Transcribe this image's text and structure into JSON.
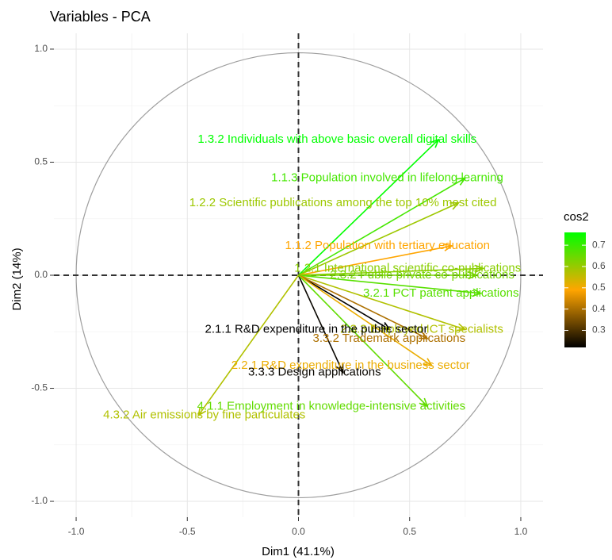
{
  "chart_data": {
    "type": "pca-correlation-circle",
    "title": "Variables - PCA",
    "xlabel": "Dim1 (41.1%)",
    "ylabel": "Dim2 (14%)",
    "xlim": [
      -1.1,
      1.1
    ],
    "ylim": [
      -1.07,
      1.07
    ],
    "xticks": [
      -1.0,
      -0.5,
      0.0,
      0.5,
      1.0
    ],
    "yticks": [
      -1.0,
      -0.5,
      0.0,
      0.5,
      1.0
    ],
    "xtick_labels": [
      "-1.0",
      "-0.5",
      "0.0",
      "0.5",
      "1.0"
    ],
    "ytick_labels": [
      "-1.0",
      "-0.5",
      "0.0",
      "0.5",
      "1.0"
    ],
    "grid": true,
    "legend": {
      "title": "cos2",
      "placement": "right",
      "range": [
        0.22,
        0.76
      ],
      "ticks": [
        0.3,
        0.4,
        0.5,
        0.6,
        0.7
      ],
      "tick_labels": [
        "0.3",
        "0.4",
        "0.5",
        "0.6",
        "0.7"
      ],
      "colors": [
        "#000000",
        "#ffa500",
        "#00ff00"
      ],
      "midpoint": 0.5
    },
    "variables": [
      {
        "label": "1.3.2 Individuals with above basic overall digital skills",
        "x": 0.63,
        "y": 0.6,
        "cos2": 0.76
      },
      {
        "label": "1.1.3 Population involved in lifelong learning",
        "x": 0.75,
        "y": 0.43,
        "cos2": 0.69
      },
      {
        "label": "1.2.2 Scientific publications among the top 10% most cited",
        "x": 0.72,
        "y": 0.32,
        "cos2": 0.6
      },
      {
        "label": "1.1.2 Population with tertiary education",
        "x": 0.69,
        "y": 0.13,
        "cos2": 0.5
      },
      {
        "label": "1.2.1 International scientific co-publications",
        "x": 0.83,
        "y": 0.03,
        "cos2": 0.62
      },
      {
        "label": "2.3.2 Public-private co-publications",
        "x": 0.8,
        "y": 0.0,
        "cos2": 0.64
      },
      {
        "label": "3.2.1 PCT patent applications",
        "x": 0.82,
        "y": -0.08,
        "cos2": 0.67
      },
      {
        "label": "2.3.3 Employed ICT specialists",
        "x": 0.75,
        "y": -0.24,
        "cos2": 0.58
      },
      {
        "label": "2.1.1 R&D expenditure in the public sector",
        "x": 0.41,
        "y": -0.24,
        "cos2": 0.22
      },
      {
        "label": "3.3.2 Trademark applications",
        "x": 0.58,
        "y": -0.28,
        "cos2": 0.41
      },
      {
        "label": "2.2.1 R&D expenditure in the business sector",
        "x": 0.6,
        "y": -0.4,
        "cos2": 0.52
      },
      {
        "label": "3.3.3 Design applications",
        "x": 0.2,
        "y": -0.43,
        "cos2": 0.23
      },
      {
        "label": "4.1.1 Employment in knowledge-intensive activities",
        "x": 0.58,
        "y": -0.58,
        "cos2": 0.66
      },
      {
        "label": "4.3.2 Air emissions by fine particulates",
        "x": -0.45,
        "y": -0.62,
        "cos2": 0.58
      }
    ]
  }
}
